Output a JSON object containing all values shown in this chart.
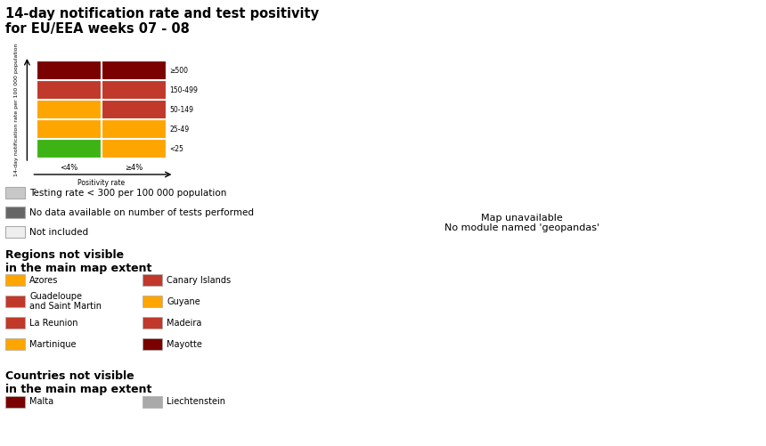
{
  "title_line1": "14-day notification rate and test positivity",
  "title_line2": "for EU/EEA weeks 07 - 08",
  "matrix_colors": [
    [
      "#3db315",
      "#ffa500"
    ],
    [
      "#ffa500",
      "#ffa500"
    ],
    [
      "#ffa500",
      "#c0392b"
    ],
    [
      "#c0392b",
      "#c0392b"
    ],
    [
      "#7b0000",
      "#7b0000"
    ]
  ],
  "row_labels": [
    "<25",
    "25-49",
    "50-149",
    "150-499",
    "≥500"
  ],
  "col_labels": [
    "<4%",
    "≥4%"
  ],
  "x_axis_label": "Positivity rate",
  "y_axis_label": "14-day notification rate per 100 000 population",
  "legend_items": [
    {
      "color": "#c8c8c8",
      "text": "Testing rate < 300 per 100 000 population"
    },
    {
      "color": "#666666",
      "text": "No data available on number of tests performed"
    },
    {
      "color": "#eeeeee",
      "text": "Not included"
    }
  ],
  "regions_title": "Regions not visible\nin the main map extent",
  "regions_left": [
    {
      "color": "#ffa500",
      "name": "Azores"
    },
    {
      "color": "#c0392b",
      "name": "Guadeloupe\nand Saint Martin"
    },
    {
      "color": "#c0392b",
      "name": "La Reunion"
    },
    {
      "color": "#ffa500",
      "name": "Martinique"
    }
  ],
  "regions_right": [
    {
      "color": "#c0392b",
      "name": "Canary Islands"
    },
    {
      "color": "#ffa500",
      "name": "Guyane"
    },
    {
      "color": "#c0392b",
      "name": "Madeira"
    },
    {
      "color": "#7b0000",
      "name": "Mayotte"
    }
  ],
  "countries_title": "Countries not visible\nin the main map extent",
  "countries_left": [
    {
      "color": "#7b0000",
      "name": "Malta"
    }
  ],
  "countries_right": [
    {
      "color": "#aaaaaa",
      "name": "Liechtenstein"
    }
  ],
  "bg_color": "#ffffff",
  "map_bg_water": "#c8d8e8",
  "map_bg_land": "#e0e0e0",
  "title_fontsize": 10.5,
  "small_fontsize": 7.5,
  "region_fontsize": 7,
  "section_fontsize": 9
}
